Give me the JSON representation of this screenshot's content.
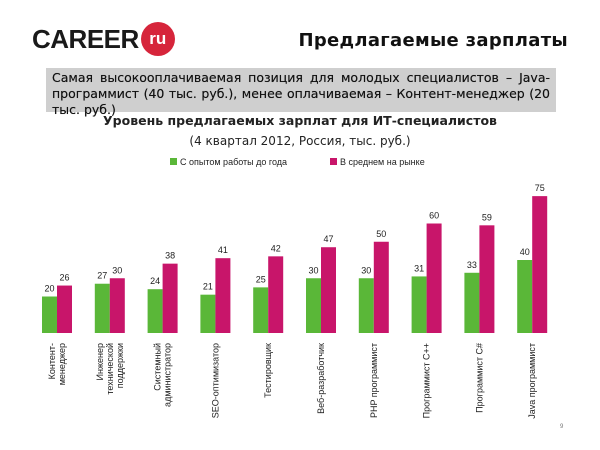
{
  "logo": {
    "text": "CAREER",
    "badge": "ru"
  },
  "slide_title": "Предлагаемые зарплаты",
  "summary": "Самая высокооплачиваемая позиция для молодых специалистов – Java-программист (40 тыс. руб.), менее оплачиваемая – Контент-менеджер (20 тыс. руб.)",
  "page_number": "9",
  "colors": {
    "green": "#5ab738",
    "magenta": "#c8156a"
  },
  "chart_data": {
    "type": "bar",
    "title": "Уровень предлагаемых зарплат для ИТ-специалистов",
    "subtitle": "(4 квартал 2012, Россия, тыс. руб.)",
    "legend_placement": "top",
    "ylim": [
      0,
      80
    ],
    "grid": false,
    "categories": [
      [
        "Контент-",
        "менеджер"
      ],
      [
        "Инженер",
        "технической",
        "поддержки"
      ],
      [
        "Системный",
        "администратор"
      ],
      [
        "SEO-оптимизатор"
      ],
      [
        "Тестировщик"
      ],
      [
        "Веб-разработчик"
      ],
      [
        "PHP программист"
      ],
      [
        "Программист C++"
      ],
      [
        "Программист C#"
      ],
      [
        "Java программист"
      ]
    ],
    "series": [
      {
        "name": "С опытом работы до года",
        "color": "#5ab738",
        "values": [
          20,
          27,
          24,
          21,
          25,
          30,
          30,
          31,
          33,
          40
        ]
      },
      {
        "name": "В среднем на рынке",
        "color": "#c8156a",
        "values": [
          26,
          30,
          38,
          41,
          42,
          47,
          50,
          60,
          59,
          75
        ]
      }
    ]
  }
}
